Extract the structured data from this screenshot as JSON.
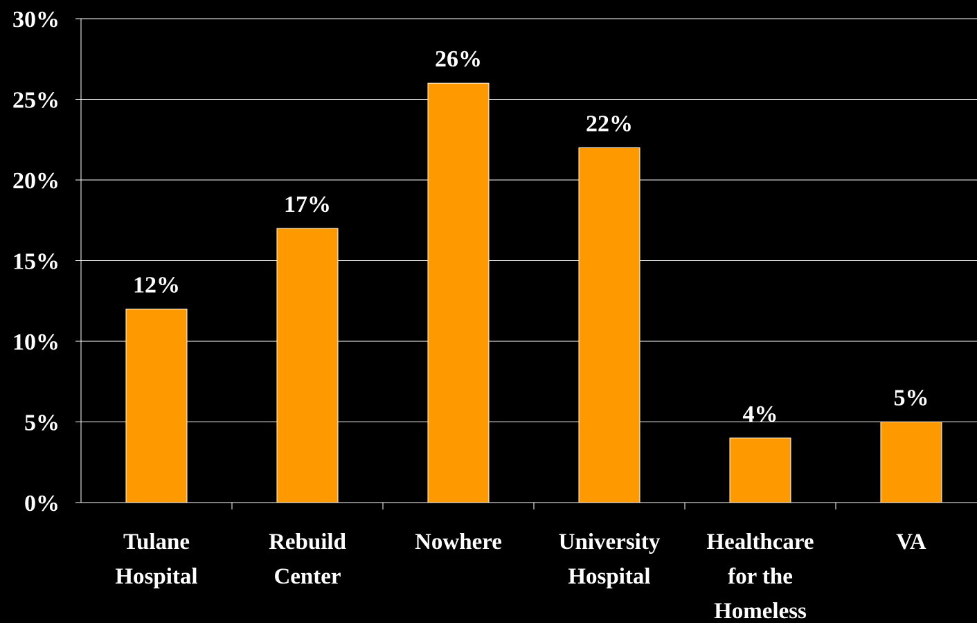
{
  "colors": {
    "background": "#000000",
    "bar": "#ff9900",
    "bar_stroke": "#ffffff",
    "gridline": "#ffffff",
    "text": "#ffffff"
  },
  "chart_data": {
    "type": "bar",
    "title": "",
    "xlabel": "",
    "ylabel": "",
    "ylim": [
      0,
      30
    ],
    "yticks": [
      "0%",
      "5%",
      "10%",
      "15%",
      "20%",
      "25%",
      "30%"
    ],
    "grid": true,
    "legend": "none",
    "categories": [
      [
        "Tulane",
        "Hospital"
      ],
      [
        "Rebuild",
        "Center"
      ],
      [
        "Nowhere"
      ],
      [
        "University",
        "Hospital"
      ],
      [
        "Healthcare",
        "for the",
        "Homeless"
      ],
      [
        "VA"
      ]
    ],
    "values": [
      12,
      17,
      26,
      22,
      4,
      5
    ],
    "data_labels": [
      "12%",
      "17%",
      "26%",
      "22%",
      "4%",
      "5%"
    ]
  }
}
